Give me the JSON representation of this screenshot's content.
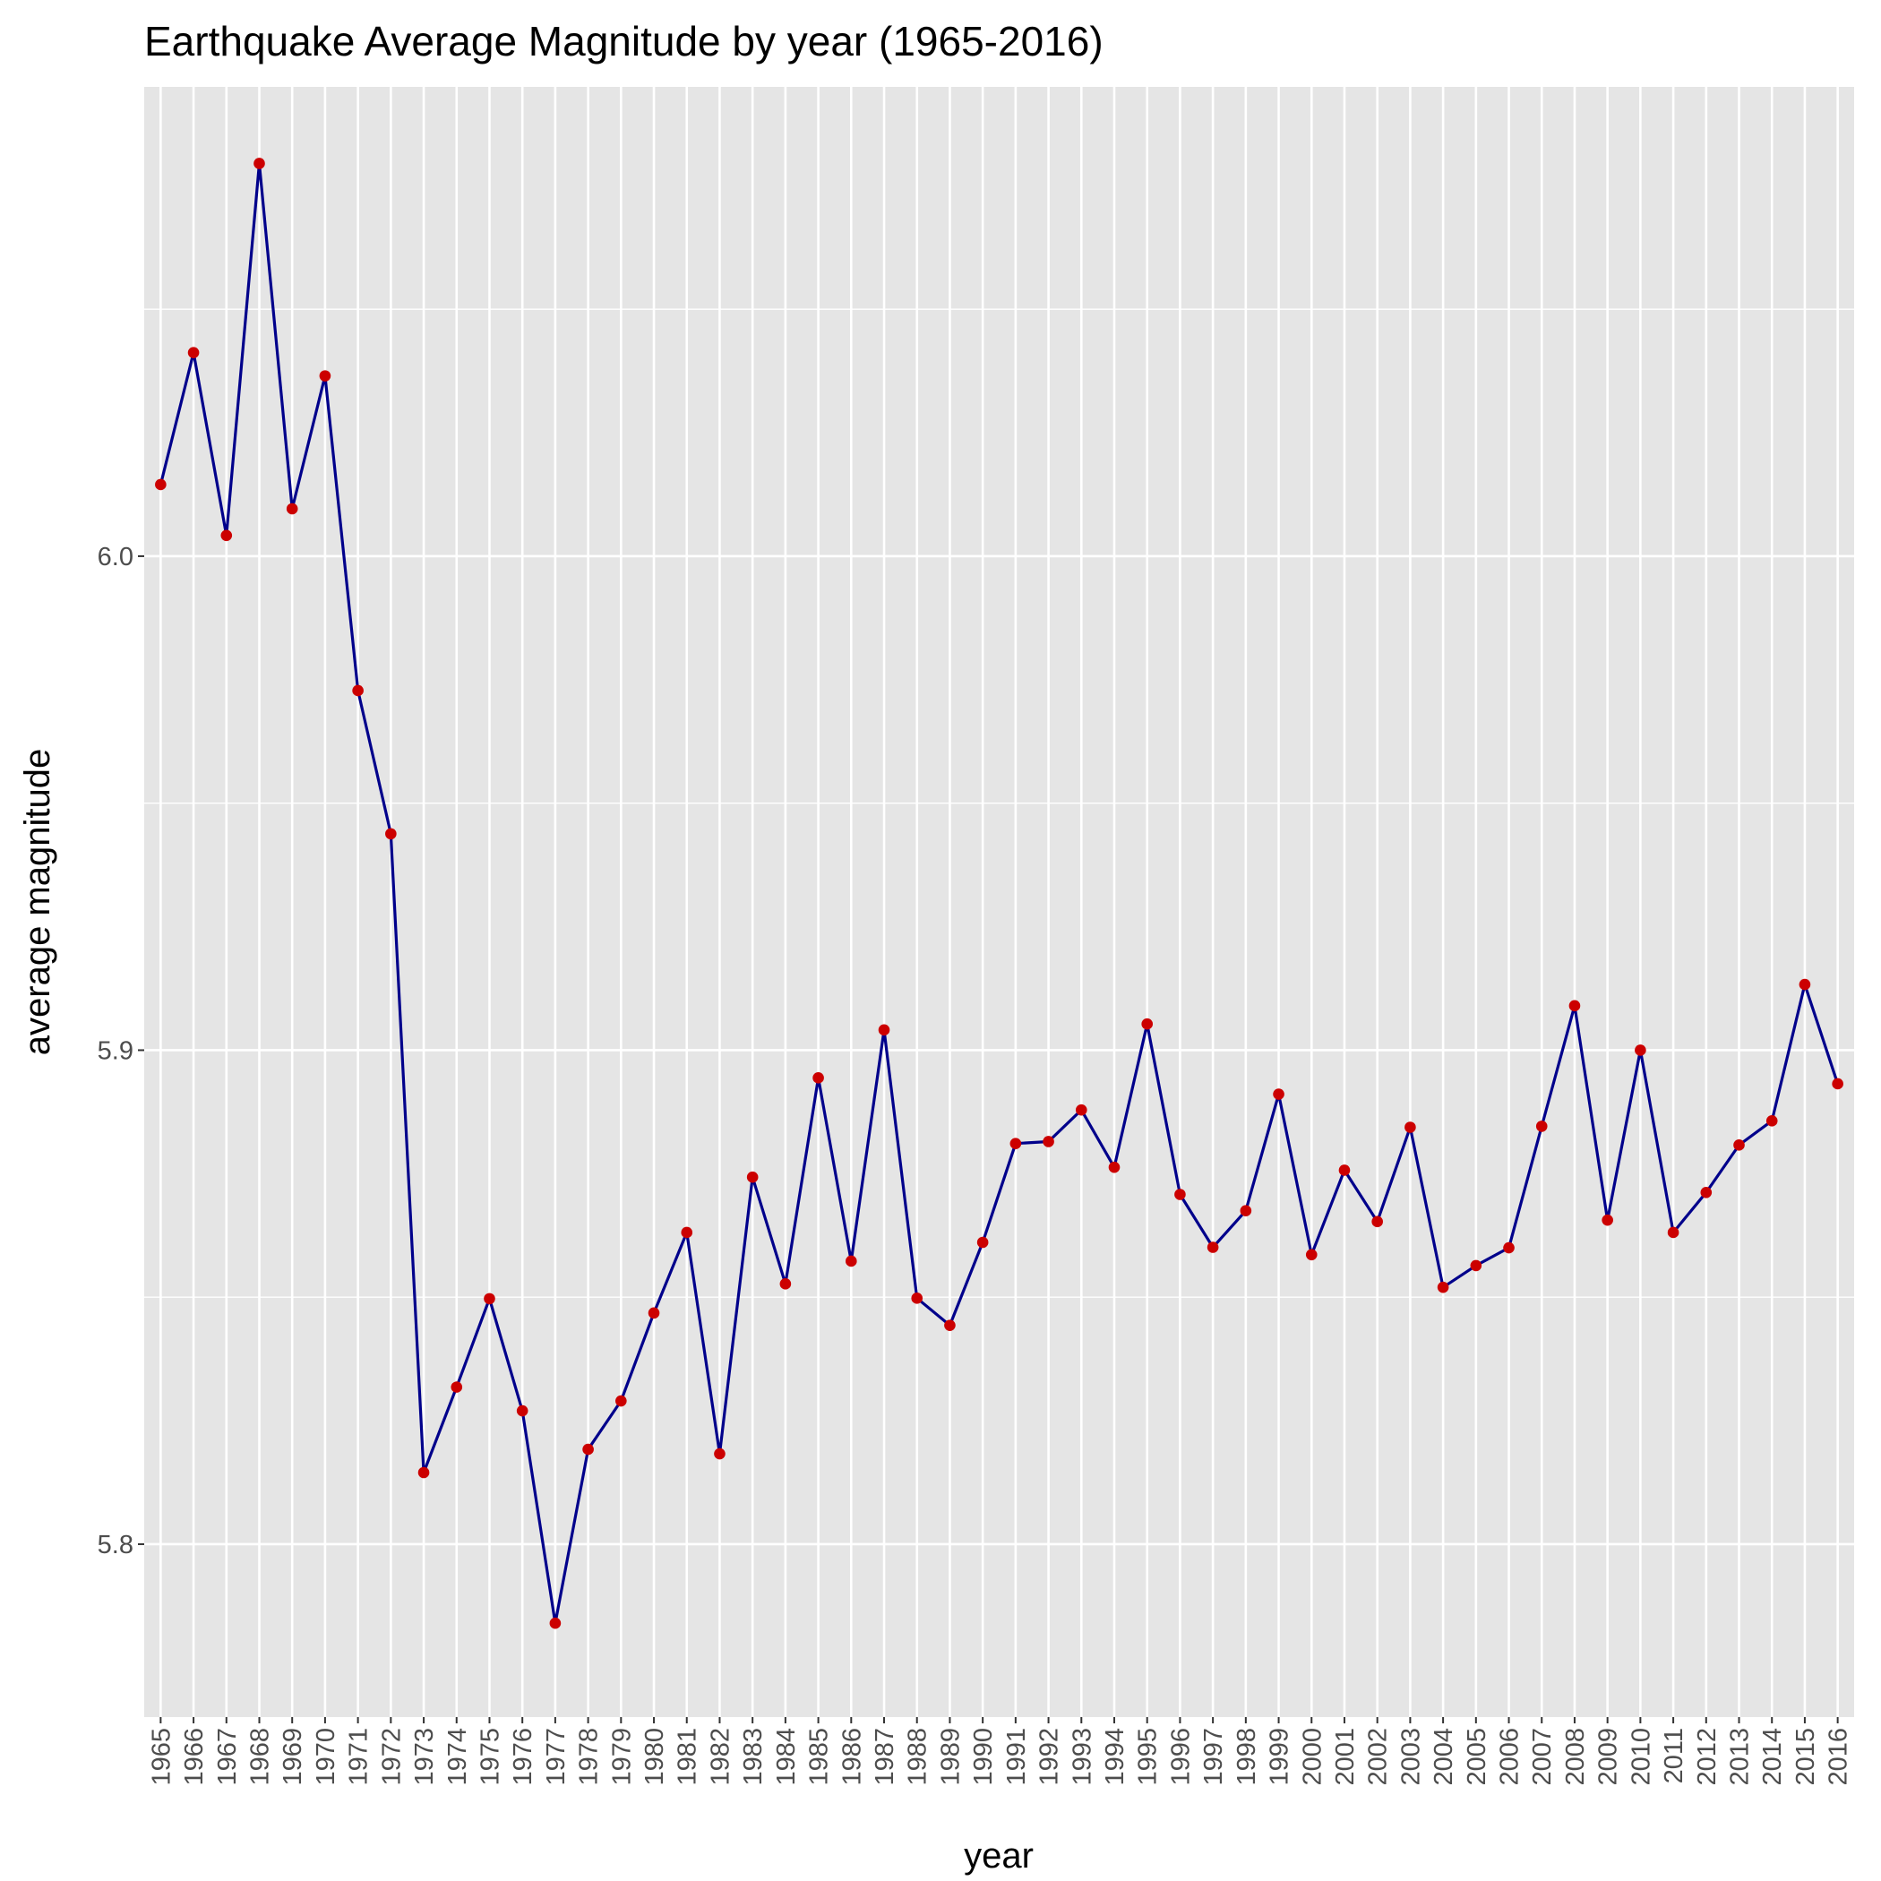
{
  "colors": {
    "panel_background": "#e5e5e5",
    "grid": "#ffffff",
    "line": "#00008b",
    "point": "#cc0000",
    "tick_label": "#4d4d4d"
  },
  "chart_data": {
    "type": "line",
    "title": "Earthquake Average Magnitude by year (1965-2016)",
    "xlabel": "year",
    "ylabel": "average magnitude",
    "ylim": [
      5.765,
      6.095
    ],
    "yticks": [
      5.8,
      5.9,
      6.0
    ],
    "ytick_labels": [
      "5.8",
      "5.9",
      "6.0"
    ],
    "grid": true,
    "legend": "none",
    "categories": [
      "1965",
      "1966",
      "1967",
      "1968",
      "1969",
      "1970",
      "1971",
      "1972",
      "1973",
      "1974",
      "1975",
      "1976",
      "1977",
      "1978",
      "1979",
      "1980",
      "1981",
      "1982",
      "1983",
      "1984",
      "1985",
      "1986",
      "1987",
      "1988",
      "1989",
      "1990",
      "1991",
      "1992",
      "1993",
      "1994",
      "1995",
      "1996",
      "1997",
      "1998",
      "1999",
      "2000",
      "2001",
      "2002",
      "2003",
      "2004",
      "2005",
      "2006",
      "2007",
      "2008",
      "2009",
      "2010",
      "2011",
      "2012",
      "2013",
      "2014",
      "2015",
      "2016"
    ],
    "series": [
      {
        "values": [
          6.0145,
          6.0412,
          6.0042,
          6.0795,
          6.0096,
          6.0365,
          5.9728,
          5.9438,
          5.8145,
          5.8318,
          5.8497,
          5.827,
          5.784,
          5.8192,
          5.829,
          5.8468,
          5.8631,
          5.8183,
          5.8743,
          5.8527,
          5.8944,
          5.8573,
          5.9041,
          5.8498,
          5.8443,
          5.8611,
          5.8811,
          5.8815,
          5.8879,
          5.8763,
          5.9053,
          5.8708,
          5.8601,
          5.8675,
          5.8911,
          5.8586,
          5.8757,
          5.8653,
          5.8844,
          5.852,
          5.8564,
          5.86,
          5.8846,
          5.909,
          5.8656,
          5.9,
          5.8631,
          5.8712,
          5.8808,
          5.8857,
          5.9133,
          5.8932
        ]
      }
    ]
  }
}
